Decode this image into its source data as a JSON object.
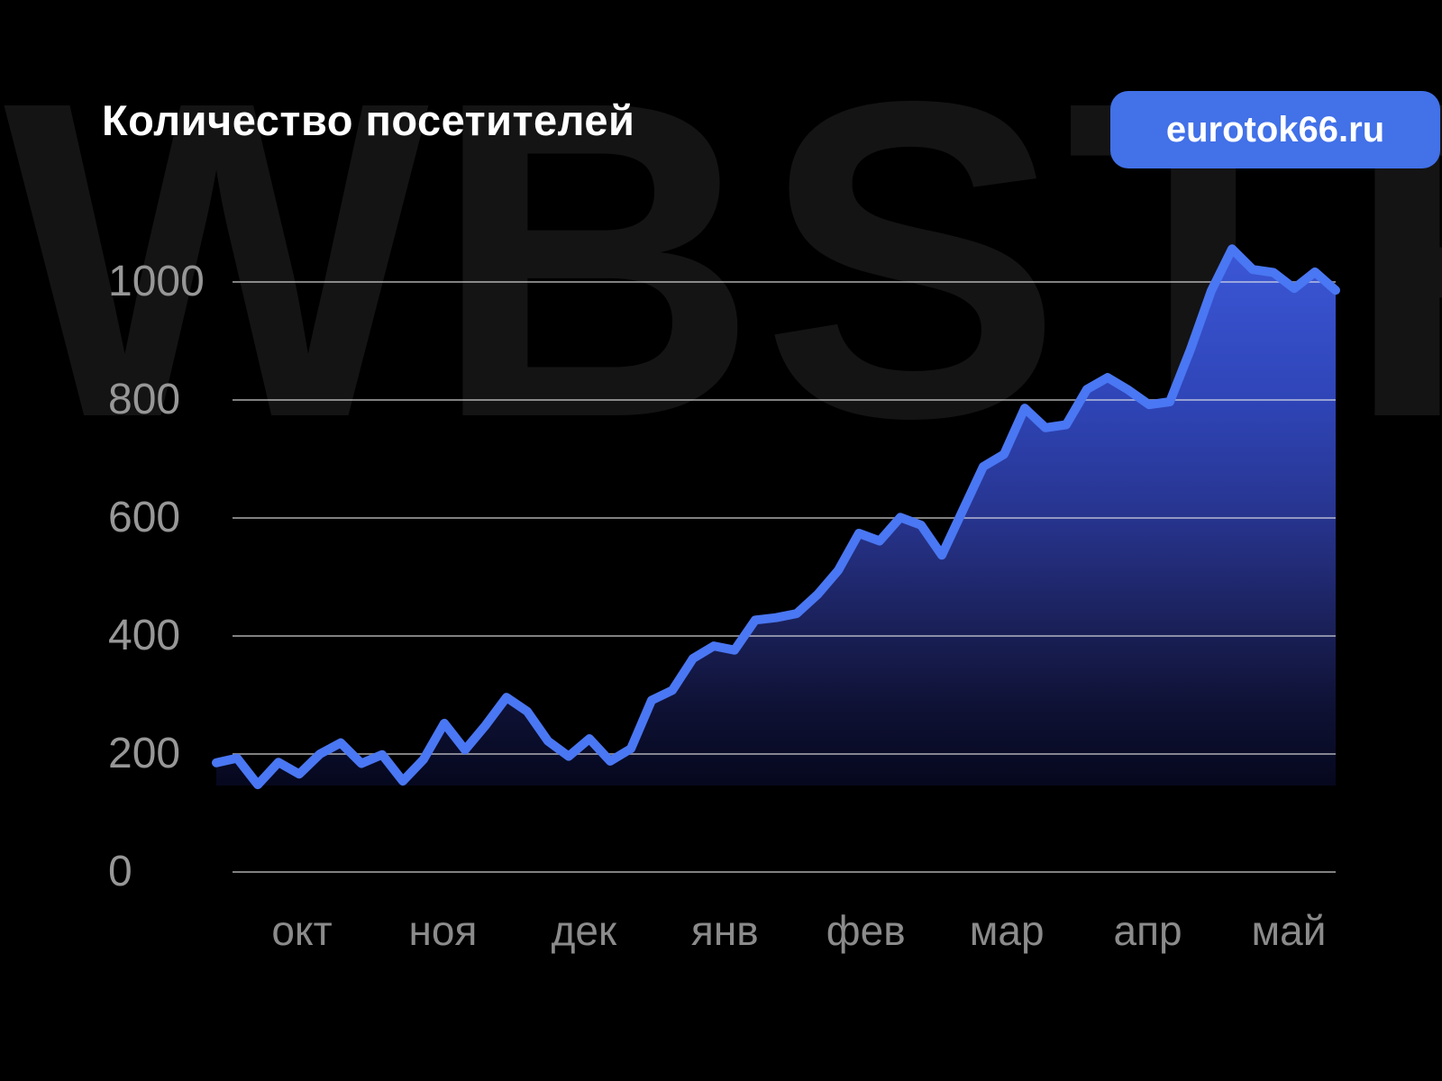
{
  "header": {
    "title": "Количество посетителей",
    "badge_label": "eurotok66.ru"
  },
  "watermark": {
    "text": "WBSTR"
  },
  "colors": {
    "background": "#000000",
    "watermark": "#141414",
    "title_text": "#ffffff",
    "badge_bg": "#4271e8",
    "badge_text": "#ffffff",
    "line": "#4a77f3",
    "gridline": "rgba(235,235,235,0.55)",
    "y_label": "#979797",
    "x_label": "#8b8b8b",
    "area_gradient": [
      [
        "0%",
        "#3c58d8"
      ],
      [
        "28%",
        "#2f45b8"
      ],
      [
        "50%",
        "#27348e"
      ],
      [
        "70%",
        "#1a2058"
      ],
      [
        "85%",
        "#0e1133"
      ],
      [
        "100%",
        "#05071c"
      ]
    ]
  },
  "chart_data": {
    "type": "area",
    "title": "Количество посетителей",
    "xlabel": "",
    "ylabel": "",
    "legend": "none",
    "grid": "horizontal",
    "x_tick_labels": [
      "окт",
      "ноя",
      "дек",
      "янв",
      "фев",
      "мар",
      "апр",
      "май"
    ],
    "y_ticks": [
      0,
      200,
      400,
      600,
      800,
      1000
    ],
    "ylim": [
      0,
      1080
    ],
    "series": [
      {
        "name": "Количество посетителей",
        "values": [
          185,
          193,
          148,
          186,
          166,
          200,
          219,
          184,
          199,
          154,
          191,
          252,
          207,
          249,
          296,
          272,
          222,
          196,
          226,
          188,
          209,
          291,
          308,
          362,
          383,
          376,
          427,
          431,
          438,
          470,
          511,
          574,
          561,
          601,
          588,
          537,
          612,
          687,
          708,
          786,
          753,
          758,
          818,
          838,
          817,
          792,
          797,
          886,
          985,
          1056,
          1021,
          1016,
          989,
          1017,
          986
        ]
      }
    ]
  }
}
